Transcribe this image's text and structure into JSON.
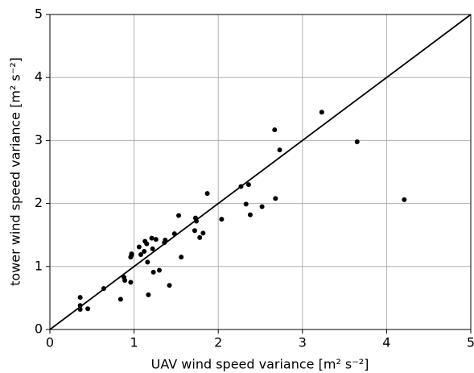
{
  "chart_data": {
    "type": "scatter",
    "xlabel": "UAV wind speed variance [m² s⁻²]",
    "ylabel": "tower wind speed variance [m² s⁻²]",
    "x": [
      0.36,
      0.36,
      0.36,
      0.45,
      0.64,
      0.84,
      0.88,
      0.89,
      0.96,
      0.96,
      0.97,
      0.97,
      1.06,
      1.08,
      1.12,
      1.13,
      1.15,
      1.16,
      1.17,
      1.21,
      1.22,
      1.23,
      1.26,
      1.3,
      1.36,
      1.37,
      1.42,
      1.48,
      1.53,
      1.56,
      1.72,
      1.73,
      1.74,
      1.78,
      1.82,
      1.87,
      2.04,
      2.27,
      2.33,
      2.36,
      2.38,
      2.52,
      2.67,
      2.68,
      2.73,
      3.23,
      3.65,
      4.21
    ],
    "values": [
      0.51,
      0.38,
      0.32,
      0.33,
      0.65,
      0.48,
      0.83,
      0.78,
      0.75,
      1.15,
      1.2,
      1.18,
      1.31,
      1.19,
      1.24,
      1.4,
      1.36,
      1.07,
      0.55,
      1.45,
      1.28,
      0.91,
      1.43,
      0.94,
      1.38,
      1.42,
      0.7,
      1.52,
      1.81,
      1.15,
      1.57,
      1.77,
      1.72,
      1.46,
      1.53,
      2.16,
      1.75,
      2.27,
      1.99,
      2.3,
      1.82,
      1.95,
      3.17,
      2.08,
      2.85,
      3.45,
      2.98,
      2.06
    ],
    "color": "#000000",
    "xlim": [
      0,
      5
    ],
    "ylim": [
      0,
      5
    ],
    "xticks": [
      0,
      1,
      2,
      3,
      4,
      5
    ],
    "yticks": [
      0,
      1,
      2,
      3,
      4,
      5
    ],
    "grid": true
  }
}
